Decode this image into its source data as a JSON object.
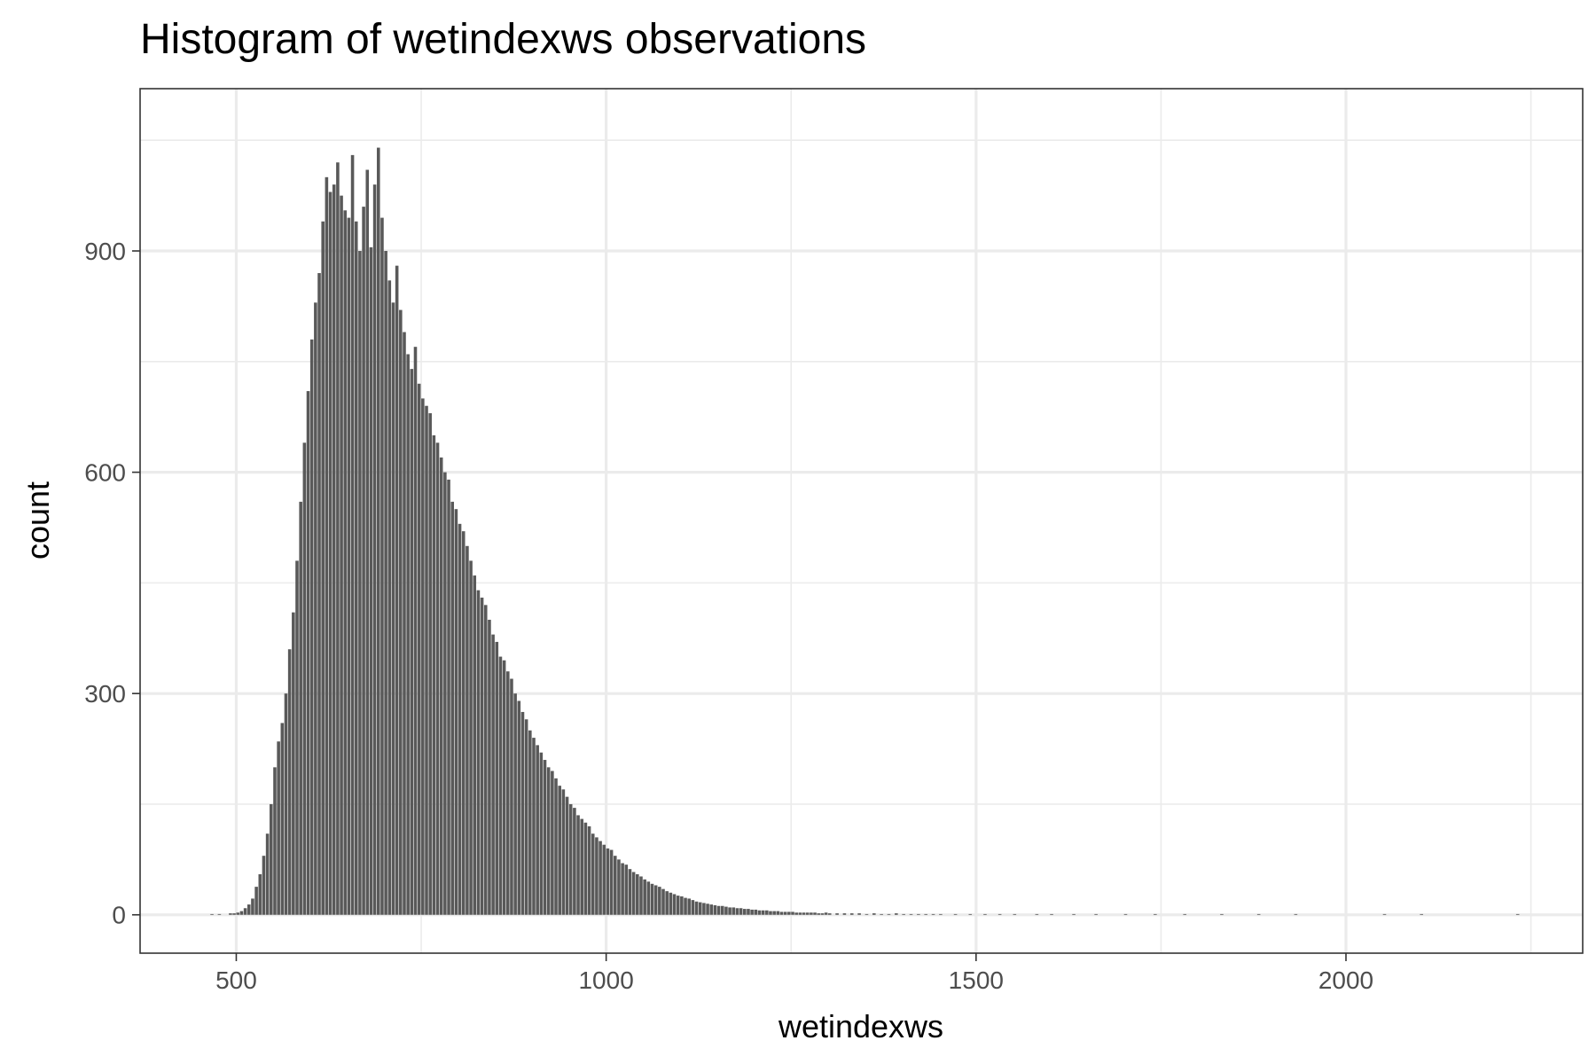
{
  "chart_data": {
    "type": "bar",
    "title": "Histogram of wetindexws observations",
    "xlabel": "wetindexws",
    "ylabel": "count",
    "xlim": [
      370,
      2320
    ],
    "ylim": [
      -52,
      1120
    ],
    "x_ticks": [
      500,
      1000,
      1500,
      2000
    ],
    "x_minor_ticks": [
      750,
      1250,
      1750,
      2250
    ],
    "y_ticks": [
      0,
      300,
      600,
      900
    ],
    "y_minor_ticks": [
      150,
      450,
      750,
      1050
    ],
    "x_tick_labels": [
      "500",
      "1000",
      "1500",
      "2000"
    ],
    "y_tick_labels": [
      "0",
      "300",
      "600",
      "900"
    ],
    "bar_color": "#595959",
    "bin_width": 5,
    "grid": true,
    "legend": "none",
    "bins": [
      [
        465,
        1
      ],
      [
        475,
        1
      ],
      [
        490,
        2
      ],
      [
        495,
        2
      ],
      [
        500,
        3
      ],
      [
        505,
        5
      ],
      [
        510,
        9
      ],
      [
        515,
        14
      ],
      [
        520,
        22
      ],
      [
        525,
        38
      ],
      [
        530,
        55
      ],
      [
        535,
        80
      ],
      [
        540,
        110
      ],
      [
        545,
        150
      ],
      [
        550,
        200
      ],
      [
        555,
        235
      ],
      [
        560,
        260
      ],
      [
        565,
        300
      ],
      [
        570,
        360
      ],
      [
        575,
        410
      ],
      [
        580,
        480
      ],
      [
        585,
        560
      ],
      [
        590,
        640
      ],
      [
        595,
        710
      ],
      [
        600,
        780
      ],
      [
        605,
        830
      ],
      [
        610,
        870
      ],
      [
        615,
        940
      ],
      [
        620,
        1000
      ],
      [
        625,
        980
      ],
      [
        630,
        990
      ],
      [
        635,
        1020
      ],
      [
        640,
        975
      ],
      [
        645,
        955
      ],
      [
        650,
        945
      ],
      [
        655,
        1030
      ],
      [
        660,
        940
      ],
      [
        665,
        900
      ],
      [
        670,
        960
      ],
      [
        675,
        1010
      ],
      [
        680,
        905
      ],
      [
        685,
        990
      ],
      [
        690,
        1040
      ],
      [
        695,
        945
      ],
      [
        700,
        900
      ],
      [
        705,
        860
      ],
      [
        710,
        830
      ],
      [
        715,
        880
      ],
      [
        720,
        820
      ],
      [
        725,
        790
      ],
      [
        730,
        760
      ],
      [
        735,
        740
      ],
      [
        740,
        770
      ],
      [
        745,
        720
      ],
      [
        750,
        700
      ],
      [
        755,
        690
      ],
      [
        760,
        680
      ],
      [
        765,
        650
      ],
      [
        770,
        640
      ],
      [
        775,
        620
      ],
      [
        780,
        600
      ],
      [
        785,
        590
      ],
      [
        790,
        560
      ],
      [
        795,
        550
      ],
      [
        800,
        530
      ],
      [
        805,
        520
      ],
      [
        810,
        500
      ],
      [
        815,
        480
      ],
      [
        820,
        460
      ],
      [
        825,
        440
      ],
      [
        830,
        430
      ],
      [
        835,
        420
      ],
      [
        840,
        400
      ],
      [
        845,
        380
      ],
      [
        850,
        370
      ],
      [
        855,
        350
      ],
      [
        860,
        345
      ],
      [
        865,
        330
      ],
      [
        870,
        320
      ],
      [
        875,
        300
      ],
      [
        880,
        290
      ],
      [
        885,
        275
      ],
      [
        890,
        265
      ],
      [
        895,
        250
      ],
      [
        900,
        240
      ],
      [
        905,
        230
      ],
      [
        910,
        220
      ],
      [
        915,
        210
      ],
      [
        920,
        200
      ],
      [
        925,
        195
      ],
      [
        930,
        185
      ],
      [
        935,
        175
      ],
      [
        940,
        170
      ],
      [
        945,
        160
      ],
      [
        950,
        150
      ],
      [
        955,
        145
      ],
      [
        960,
        135
      ],
      [
        965,
        130
      ],
      [
        970,
        125
      ],
      [
        975,
        120
      ],
      [
        980,
        110
      ],
      [
        985,
        105
      ],
      [
        990,
        100
      ],
      [
        995,
        95
      ],
      [
        1000,
        90
      ],
      [
        1005,
        88
      ],
      [
        1010,
        80
      ],
      [
        1015,
        75
      ],
      [
        1020,
        70
      ],
      [
        1025,
        68
      ],
      [
        1030,
        62
      ],
      [
        1035,
        58
      ],
      [
        1040,
        55
      ],
      [
        1045,
        52
      ],
      [
        1050,
        48
      ],
      [
        1055,
        45
      ],
      [
        1060,
        42
      ],
      [
        1065,
        40
      ],
      [
        1070,
        38
      ],
      [
        1075,
        35
      ],
      [
        1080,
        32
      ],
      [
        1085,
        30
      ],
      [
        1090,
        28
      ],
      [
        1095,
        26
      ],
      [
        1100,
        25
      ],
      [
        1105,
        23
      ],
      [
        1110,
        22
      ],
      [
        1115,
        20
      ],
      [
        1120,
        18
      ],
      [
        1125,
        17
      ],
      [
        1130,
        16
      ],
      [
        1135,
        15
      ],
      [
        1140,
        14
      ],
      [
        1145,
        13
      ],
      [
        1150,
        12
      ],
      [
        1155,
        12
      ],
      [
        1160,
        11
      ],
      [
        1165,
        10
      ],
      [
        1170,
        10
      ],
      [
        1175,
        9
      ],
      [
        1180,
        9
      ],
      [
        1185,
        8
      ],
      [
        1190,
        8
      ],
      [
        1195,
        7
      ],
      [
        1200,
        7
      ],
      [
        1205,
        6
      ],
      [
        1210,
        6
      ],
      [
        1215,
        6
      ],
      [
        1220,
        5
      ],
      [
        1225,
        5
      ],
      [
        1230,
        5
      ],
      [
        1235,
        4
      ],
      [
        1240,
        4
      ],
      [
        1245,
        4
      ],
      [
        1250,
        4
      ],
      [
        1255,
        3
      ],
      [
        1260,
        3
      ],
      [
        1265,
        3
      ],
      [
        1270,
        3
      ],
      [
        1275,
        3
      ],
      [
        1280,
        3
      ],
      [
        1285,
        2
      ],
      [
        1290,
        2
      ],
      [
        1295,
        3
      ],
      [
        1300,
        2
      ],
      [
        1310,
        2
      ],
      [
        1320,
        2
      ],
      [
        1330,
        2
      ],
      [
        1340,
        2
      ],
      [
        1350,
        1
      ],
      [
        1360,
        2
      ],
      [
        1370,
        1
      ],
      [
        1380,
        1
      ],
      [
        1390,
        2
      ],
      [
        1400,
        1
      ],
      [
        1410,
        1
      ],
      [
        1420,
        1
      ],
      [
        1430,
        1
      ],
      [
        1440,
        1
      ],
      [
        1450,
        1
      ],
      [
        1470,
        1
      ],
      [
        1490,
        1
      ],
      [
        1510,
        1
      ],
      [
        1530,
        1
      ],
      [
        1550,
        1
      ],
      [
        1580,
        1
      ],
      [
        1600,
        1
      ],
      [
        1630,
        1
      ],
      [
        1660,
        1
      ],
      [
        1700,
        1
      ],
      [
        1740,
        1
      ],
      [
        1780,
        1
      ],
      [
        1830,
        1
      ],
      [
        1880,
        1
      ],
      [
        1930,
        1
      ],
      [
        2050,
        1
      ],
      [
        2100,
        1
      ],
      [
        2230,
        1
      ]
    ]
  }
}
